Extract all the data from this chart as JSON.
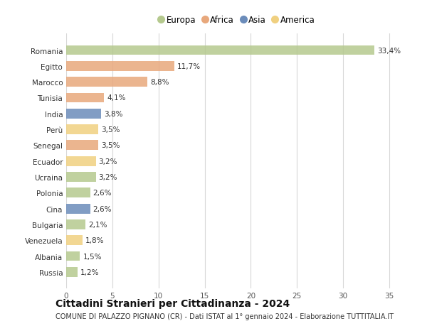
{
  "countries": [
    "Romania",
    "Egitto",
    "Marocco",
    "Tunisia",
    "India",
    "Perù",
    "Senegal",
    "Ecuador",
    "Ucraina",
    "Polonia",
    "Cina",
    "Bulgaria",
    "Venezuela",
    "Albania",
    "Russia"
  ],
  "values": [
    33.4,
    11.7,
    8.8,
    4.1,
    3.8,
    3.5,
    3.5,
    3.2,
    3.2,
    2.6,
    2.6,
    2.1,
    1.8,
    1.5,
    1.2
  ],
  "labels": [
    "33,4%",
    "11,7%",
    "8,8%",
    "4,1%",
    "3,8%",
    "3,5%",
    "3,5%",
    "3,2%",
    "3,2%",
    "2,6%",
    "2,6%",
    "2,1%",
    "1,8%",
    "1,5%",
    "1,2%"
  ],
  "continents": [
    "Europa",
    "Africa",
    "Africa",
    "Africa",
    "Asia",
    "America",
    "Africa",
    "America",
    "Europa",
    "Europa",
    "Asia",
    "Europa",
    "America",
    "Europa",
    "Europa"
  ],
  "continent_colors": {
    "Europa": "#b5c98e",
    "Africa": "#e8a87c",
    "Asia": "#6b8cba",
    "America": "#f0d080"
  },
  "legend_order": [
    "Europa",
    "Africa",
    "Asia",
    "America"
  ],
  "title": "Cittadini Stranieri per Cittadinanza - 2024",
  "subtitle": "COMUNE DI PALAZZO PIGNANO (CR) - Dati ISTAT al 1° gennaio 2024 - Elaborazione TUTTITALIA.IT",
  "xlim": [
    0,
    37
  ],
  "xticks": [
    0,
    5,
    10,
    15,
    20,
    25,
    30,
    35
  ],
  "background_color": "#ffffff",
  "grid_color": "#d8d8d8",
  "bar_height": 0.62,
  "label_fontsize": 7.5,
  "tick_fontsize": 7.5,
  "title_fontsize": 10,
  "subtitle_fontsize": 7,
  "legend_fontsize": 8.5
}
